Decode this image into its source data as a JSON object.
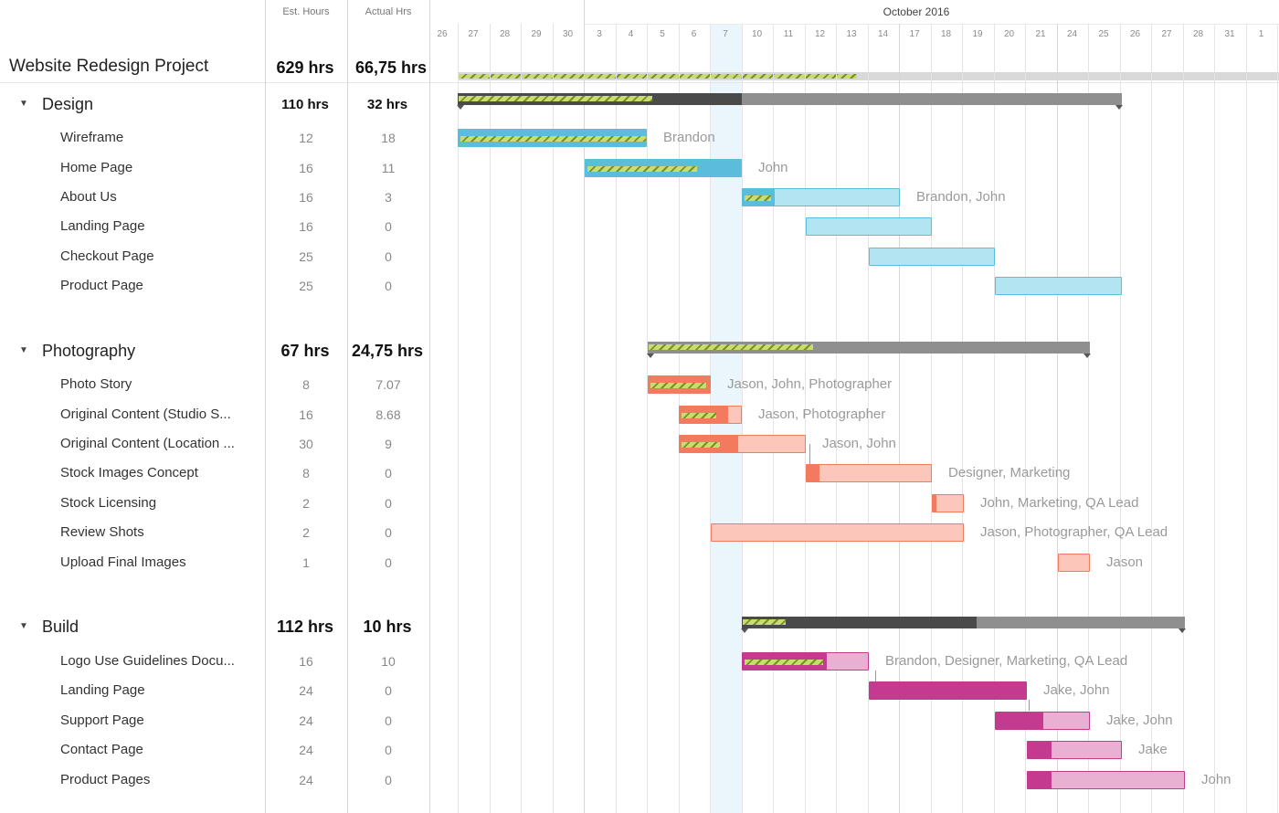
{
  "header": {
    "est_hours": "Est. Hours",
    "actual_hours": "Actual Hrs",
    "month": "October 2016",
    "days": [
      "26",
      "27",
      "28",
      "29",
      "30",
      "3",
      "4",
      "5",
      "6",
      "7",
      "10",
      "11",
      "12",
      "13",
      "14",
      "17",
      "18",
      "19",
      "20",
      "21",
      "24",
      "25",
      "26",
      "27",
      "28",
      "31",
      "1"
    ],
    "today": "7"
  },
  "project": {
    "name": "Website Redesign Project",
    "est": "629 hrs",
    "actual": "66,75 hrs"
  },
  "colors": {
    "design": "#5bbcdb",
    "design_light": "#b3e4f1",
    "photo": "#f47a5f",
    "photo_light": "#fcc7ba",
    "build": "#c43a8e",
    "build_light": "#e9b0d4"
  },
  "groups": [
    {
      "name": "Design",
      "est": "110 hrs",
      "actual": "32 hrs",
      "tasks": [
        {
          "name": "Wireframe",
          "est": "12",
          "actual": "18",
          "assignee": "Brandon"
        },
        {
          "name": "Home Page",
          "est": "16",
          "actual": "11",
          "assignee": "John"
        },
        {
          "name": "About Us",
          "est": "16",
          "actual": "3",
          "assignee": "Brandon, John"
        },
        {
          "name": "Landing Page",
          "est": "16",
          "actual": "0",
          "assignee": ""
        },
        {
          "name": "Checkout Page",
          "est": "25",
          "actual": "0",
          "assignee": ""
        },
        {
          "name": "Product Page",
          "est": "25",
          "actual": "0",
          "assignee": ""
        }
      ]
    },
    {
      "name": "Photography",
      "est": "67 hrs",
      "actual": "24,75 hrs",
      "tasks": [
        {
          "name": "Photo Story",
          "est": "8",
          "actual": "7.07",
          "assignee": "Jason, John, Photographer"
        },
        {
          "name": "Original Content (Studio S...",
          "est": "16",
          "actual": "8.68",
          "assignee": "Jason, Photographer"
        },
        {
          "name": "Original Content (Location ...",
          "est": "30",
          "actual": "9",
          "assignee": "Jason, John"
        },
        {
          "name": "Stock Images Concept",
          "est": "8",
          "actual": "0",
          "assignee": "Designer, Marketing"
        },
        {
          "name": "Stock Licensing",
          "est": "2",
          "actual": "0",
          "assignee": "John, Marketing, QA Lead"
        },
        {
          "name": "Review Shots",
          "est": "2",
          "actual": "0",
          "assignee": "Jason, Photographer, QA Lead"
        },
        {
          "name": "Upload Final Images",
          "est": "1",
          "actual": "0",
          "assignee": "Jason"
        }
      ]
    },
    {
      "name": "Build",
      "est": "112 hrs",
      "actual": "10 hrs",
      "tasks": [
        {
          "name": "Logo Use Guidelines Docu...",
          "est": "16",
          "actual": "10",
          "assignee": "Brandon, Designer, Marketing, QA Lead"
        },
        {
          "name": "Landing Page",
          "est": "24",
          "actual": "0",
          "assignee": "Jake, John"
        },
        {
          "name": "Support Page",
          "est": "24",
          "actual": "0",
          "assignee": "Jake, John"
        },
        {
          "name": "Contact Page",
          "est": "24",
          "actual": "0",
          "assignee": "Jake"
        },
        {
          "name": "Product Pages",
          "est": "24",
          "actual": "0",
          "assignee": "John"
        }
      ]
    }
  ]
}
